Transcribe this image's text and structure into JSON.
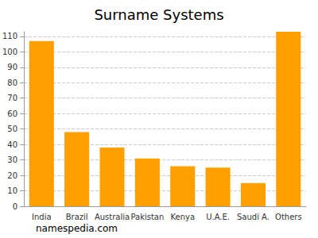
{
  "chart_data": {
    "type": "bar",
    "title": "Surname Systems",
    "categories": [
      "India",
      "Brazil",
      "Australia",
      "Pakistan",
      "Kenya",
      "U.A.E.",
      "Saudi A.",
      "Others"
    ],
    "values": [
      107,
      48,
      38,
      31,
      26,
      25,
      15,
      113
    ],
    "color": "#ffa000",
    "ylim": [
      0,
      113
    ],
    "yticks": [
      0,
      10,
      20,
      30,
      40,
      50,
      60,
      70,
      80,
      90,
      100,
      110
    ],
    "grid": true,
    "annotations": [
      "namespedia.com"
    ]
  }
}
